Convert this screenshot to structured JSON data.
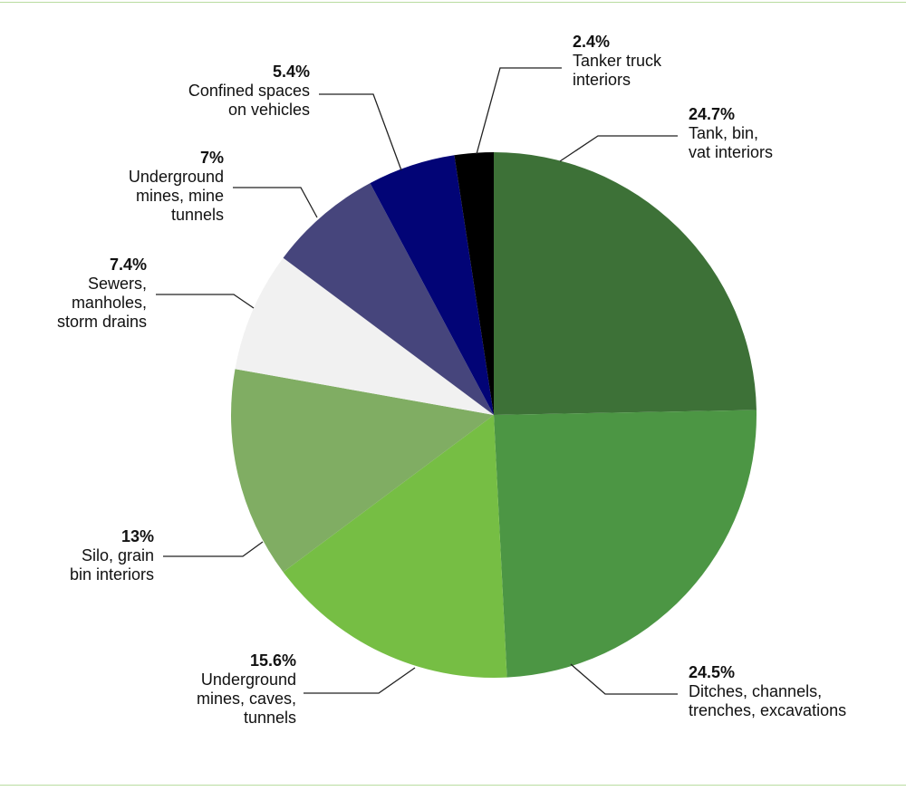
{
  "chart_data": {
    "type": "pie",
    "slices": [
      {
        "value": 24.7,
        "percent_label": "24.7%",
        "label_lines": [
          "Tank, bin,",
          "vat interiors"
        ],
        "color": "#3d7137"
      },
      {
        "value": 24.5,
        "percent_label": "24.5%",
        "label_lines": [
          "Ditches, channels,",
          "trenches, excavations"
        ],
        "color": "#4c9644"
      },
      {
        "value": 15.6,
        "percent_label": "15.6%",
        "label_lines": [
          "Underground",
          "mines, caves,",
          "tunnels"
        ],
        "color": "#76be44"
      },
      {
        "value": 13,
        "percent_label": "13%",
        "label_lines": [
          "Silo, grain",
          "bin interiors"
        ],
        "color": "#80ad63"
      },
      {
        "value": 7.4,
        "percent_label": "7.4%",
        "label_lines": [
          "Sewers,",
          "manholes,",
          "storm drains"
        ],
        "color": "#f1f1f1"
      },
      {
        "value": 7,
        "percent_label": "7%",
        "label_lines": [
          "Underground",
          "mines, mine",
          "tunnels"
        ],
        "color": "#46457c"
      },
      {
        "value": 5.4,
        "percent_label": "5.4%",
        "label_lines": [
          "Confined spaces",
          "on vehicles"
        ],
        "color": "#020476"
      },
      {
        "value": 2.4,
        "percent_label": "2.4%",
        "label_lines": [
          "Tanker truck",
          "interiors"
        ],
        "color": "#000000"
      }
    ]
  }
}
